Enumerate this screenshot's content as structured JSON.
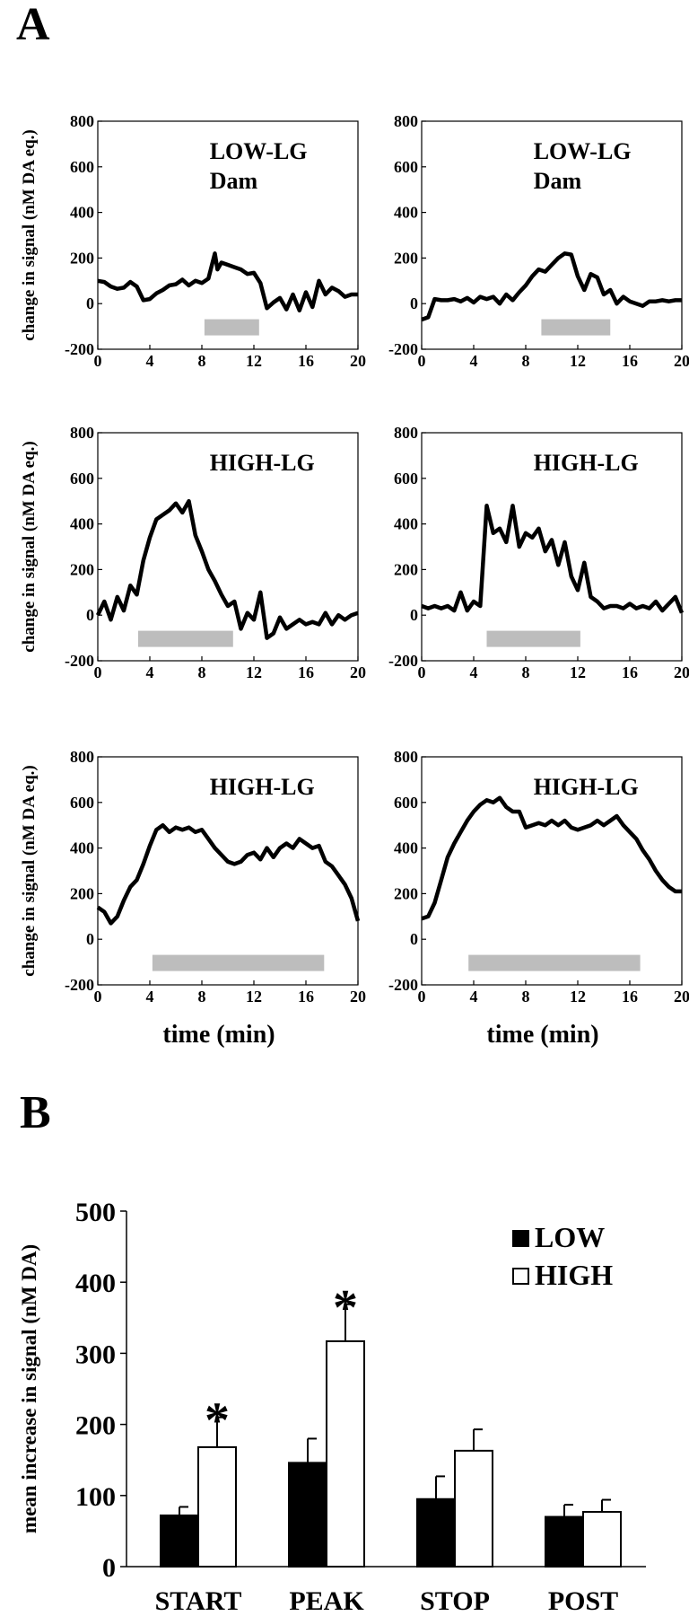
{
  "panel_a_label": "A",
  "panel_b_label": "B",
  "chart_data": [
    {
      "type": "line",
      "panel": "A",
      "row": 1,
      "col": 1,
      "label_lines": [
        "LOW-LG",
        "Dam"
      ],
      "ylabel": "change in signal (nM DA eq.)",
      "xlabel": "",
      "xlim": [
        0,
        20
      ],
      "ylim": [
        -200,
        800
      ],
      "xticks": [
        0,
        4,
        8,
        12,
        16,
        20
      ],
      "yticks": [
        800,
        600,
        400,
        200,
        0,
        -200
      ],
      "stimulus": [
        8.2,
        12.4
      ],
      "x": [
        0,
        0.5,
        1,
        1.5,
        2,
        2.5,
        3,
        3.5,
        4,
        4.5,
        5,
        5.5,
        6,
        6.5,
        7,
        7.5,
        8,
        8.5,
        9,
        9.2,
        9.5,
        10,
        10.5,
        11,
        11.5,
        12,
        12.5,
        13,
        13.5,
        14,
        14.5,
        15,
        15.5,
        16,
        16.5,
        17,
        17.5,
        18,
        18.5,
        19,
        19.5,
        20
      ],
      "y": [
        100,
        95,
        75,
        65,
        70,
        95,
        75,
        15,
        20,
        45,
        60,
        80,
        85,
        105,
        80,
        100,
        90,
        110,
        220,
        150,
        180,
        170,
        160,
        150,
        130,
        135,
        90,
        -20,
        5,
        25,
        -25,
        40,
        -30,
        50,
        -15,
        100,
        40,
        70,
        55,
        30,
        40,
        40
      ]
    },
    {
      "type": "line",
      "panel": "A",
      "row": 1,
      "col": 2,
      "label_lines": [
        "LOW-LG",
        "Dam"
      ],
      "ylabel": "",
      "xlabel": "",
      "xlim": [
        0,
        20
      ],
      "ylim": [
        -200,
        800
      ],
      "xticks": [
        0,
        4,
        8,
        12,
        16,
        20
      ],
      "yticks": [
        800,
        600,
        400,
        200,
        0,
        -200
      ],
      "stimulus": [
        9.2,
        14.5
      ],
      "x": [
        0,
        0.5,
        1,
        1.5,
        2,
        2.5,
        3,
        3.5,
        4,
        4.5,
        5,
        5.5,
        6,
        6.5,
        7,
        7.5,
        8,
        8.5,
        9,
        9.5,
        10,
        10.5,
        11,
        11.5,
        12,
        12.5,
        13,
        13.5,
        14,
        14.5,
        15,
        15.5,
        16,
        16.5,
        17,
        17.5,
        18,
        18.5,
        19,
        19.5,
        20
      ],
      "y": [
        -70,
        -60,
        20,
        15,
        15,
        20,
        10,
        25,
        5,
        30,
        20,
        30,
        0,
        40,
        15,
        50,
        80,
        120,
        150,
        140,
        170,
        200,
        220,
        215,
        120,
        60,
        130,
        115,
        40,
        60,
        0,
        30,
        10,
        0,
        -10,
        10,
        10,
        15,
        10,
        15,
        15
      ]
    },
    {
      "type": "line",
      "panel": "A",
      "row": 2,
      "col": 1,
      "label_lines": [
        "HIGH-LG"
      ],
      "ylabel": "change in signal (nM DA eq.)",
      "xlabel": "",
      "xlim": [
        0,
        20
      ],
      "ylim": [
        -200,
        800
      ],
      "xticks": [
        0,
        4,
        8,
        12,
        16,
        20
      ],
      "yticks": [
        800,
        600,
        400,
        200,
        0,
        -200
      ],
      "stimulus": [
        3.1,
        10.4
      ],
      "x": [
        0,
        0.5,
        1,
        1.5,
        2,
        2.5,
        3,
        3.5,
        4,
        4.5,
        5,
        5.5,
        6,
        6.5,
        7,
        7.5,
        8,
        8.5,
        9,
        9.5,
        10,
        10.5,
        11,
        11.5,
        12,
        12.5,
        13,
        13.5,
        14,
        14.5,
        15,
        15.5,
        16,
        16.5,
        17,
        17.5,
        18,
        18.5,
        19,
        19.5,
        20
      ],
      "y": [
        0,
        60,
        -20,
        80,
        20,
        130,
        90,
        240,
        340,
        420,
        440,
        460,
        490,
        450,
        500,
        350,
        280,
        200,
        150,
        90,
        40,
        60,
        -60,
        10,
        -20,
        100,
        -100,
        -80,
        -10,
        -60,
        -40,
        -20,
        -40,
        -30,
        -40,
        10,
        -40,
        0,
        -20,
        0,
        10
      ]
    },
    {
      "type": "line",
      "panel": "A",
      "row": 2,
      "col": 2,
      "label_lines": [
        "HIGH-LG"
      ],
      "ylabel": "",
      "xlabel": "",
      "xlim": [
        0,
        20
      ],
      "ylim": [
        -200,
        800
      ],
      "xticks": [
        0,
        4,
        8,
        12,
        16,
        20
      ],
      "yticks": [
        800,
        600,
        400,
        200,
        0,
        -200
      ],
      "stimulus": [
        5.0,
        12.2
      ],
      "x": [
        0,
        0.5,
        1,
        1.5,
        2,
        2.5,
        3,
        3.5,
        4,
        4.5,
        5,
        5.5,
        6,
        6.5,
        7,
        7.5,
        8,
        8.5,
        9,
        9.5,
        10,
        10.5,
        11,
        11.5,
        12,
        12.5,
        13,
        13.5,
        14,
        14.5,
        15,
        15.5,
        16,
        16.5,
        17,
        17.5,
        18,
        18.5,
        19,
        19.5,
        20
      ],
      "y": [
        40,
        30,
        40,
        30,
        40,
        20,
        100,
        20,
        60,
        40,
        480,
        360,
        380,
        320,
        480,
        300,
        360,
        340,
        380,
        280,
        330,
        220,
        320,
        170,
        110,
        230,
        80,
        60,
        30,
        40,
        40,
        30,
        50,
        30,
        40,
        30,
        60,
        20,
        50,
        80,
        10
      ]
    },
    {
      "type": "line",
      "panel": "A",
      "row": 3,
      "col": 1,
      "label_lines": [
        "HIGH-LG"
      ],
      "ylabel": "change in signal (nM DA eq.)",
      "xlabel": "time (min)",
      "xlim": [
        0,
        20
      ],
      "ylim": [
        -200,
        800
      ],
      "xticks": [
        0,
        4,
        8,
        12,
        16,
        20
      ],
      "yticks": [
        800,
        600,
        400,
        200,
        0,
        -200
      ],
      "stimulus": [
        4.2,
        17.4
      ],
      "x": [
        0,
        0.5,
        1,
        1.5,
        2,
        2.5,
        3,
        3.5,
        4,
        4.5,
        5,
        5.5,
        6,
        6.5,
        7,
        7.5,
        8,
        8.5,
        9,
        9.5,
        10,
        10.5,
        11,
        11.5,
        12,
        12.5,
        13,
        13.5,
        14,
        14.5,
        15,
        15.5,
        16,
        16.5,
        17,
        17.5,
        18,
        18.5,
        19,
        19.5,
        20
      ],
      "y": [
        140,
        120,
        70,
        100,
        170,
        230,
        260,
        330,
        410,
        480,
        500,
        470,
        490,
        480,
        490,
        470,
        480,
        440,
        400,
        370,
        340,
        330,
        340,
        370,
        380,
        350,
        400,
        360,
        400,
        420,
        400,
        440,
        420,
        400,
        410,
        340,
        320,
        280,
        240,
        180,
        80
      ]
    },
    {
      "type": "line",
      "panel": "A",
      "row": 3,
      "col": 2,
      "label_lines": [
        "HIGH-LG"
      ],
      "ylabel": "",
      "xlabel": "time (min)",
      "xlim": [
        0,
        20
      ],
      "ylim": [
        -200,
        800
      ],
      "xticks": [
        0,
        4,
        8,
        12,
        16,
        20
      ],
      "yticks": [
        800,
        600,
        400,
        200,
        0,
        -200
      ],
      "stimulus": [
        3.6,
        16.8
      ],
      "x": [
        0,
        0.5,
        1,
        1.5,
        2,
        2.5,
        3,
        3.5,
        4,
        4.5,
        5,
        5.5,
        6,
        6.5,
        7,
        7.5,
        8,
        8.5,
        9,
        9.5,
        10,
        10.5,
        11,
        11.5,
        12,
        12.5,
        13,
        13.5,
        14,
        14.5,
        15,
        15.5,
        16,
        16.5,
        17,
        17.5,
        18,
        18.5,
        19,
        19.5,
        20
      ],
      "y": [
        90,
        100,
        160,
        260,
        360,
        420,
        470,
        520,
        560,
        590,
        610,
        600,
        620,
        580,
        560,
        560,
        490,
        500,
        510,
        500,
        520,
        500,
        520,
        490,
        480,
        490,
        500,
        520,
        500,
        520,
        540,
        500,
        470,
        440,
        390,
        350,
        300,
        260,
        230,
        210,
        210
      ]
    },
    {
      "type": "bar",
      "panel": "B",
      "categories": [
        "START",
        "PEAK",
        "STOP",
        "POST"
      ],
      "series": [
        {
          "name": "LOW",
          "values": [
            72,
            146,
            95,
            70
          ],
          "errors": [
            12,
            34,
            32,
            17
          ],
          "color": "#000000"
        },
        {
          "name": "HIGH",
          "values": [
            168,
            317,
            163,
            77
          ],
          "errors": [
            42,
            52,
            30,
            17
          ],
          "color": "#ffffff"
        }
      ],
      "significant": [
        true,
        true,
        false,
        false
      ],
      "significance_marker": "*",
      "ylabel": "mean increase in signal (nM DA)",
      "xlabel": "",
      "ylim": [
        0,
        500
      ],
      "yticks": [
        500,
        400,
        300,
        200,
        100,
        0
      ],
      "legend": "top-right"
    }
  ]
}
